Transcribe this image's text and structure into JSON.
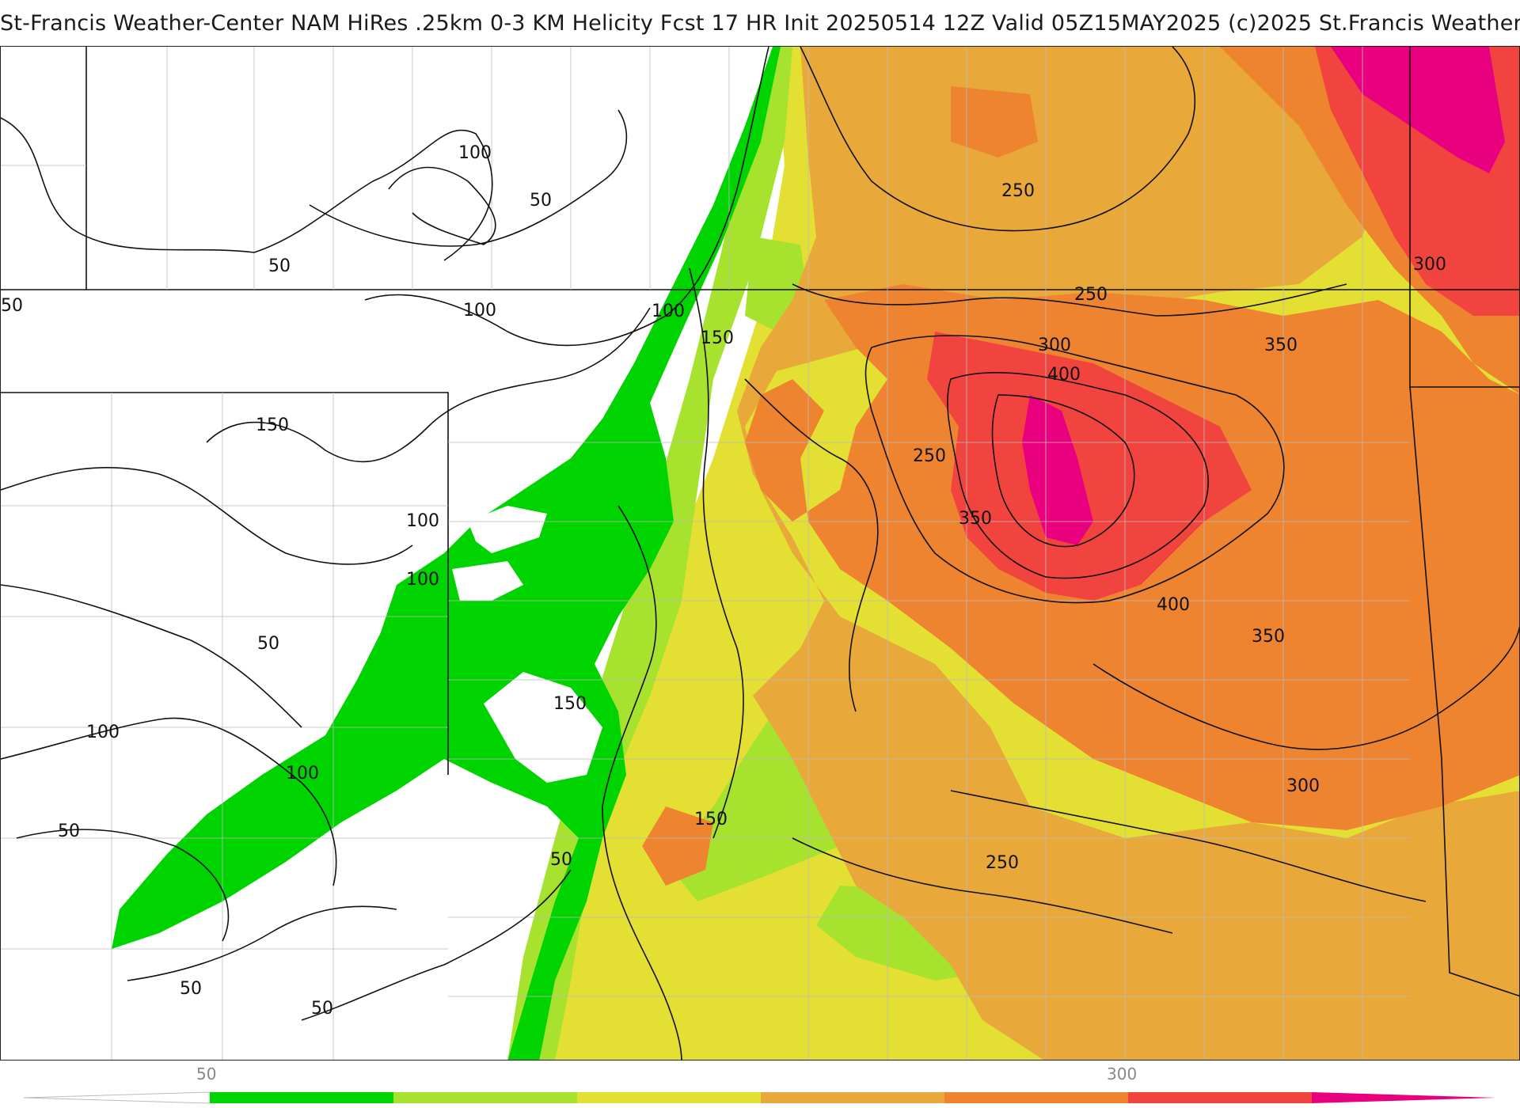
{
  "header": {
    "title": "St-Francis Weather-Center NAM HiRes .25km 0-3 KM Helicity Fcst 17 HR Init 20250514 12Z  Valid 05Z15MAY2025    (c)2025 St.Francis Weather"
  },
  "map": {
    "variable": "0-3 KM Helicity",
    "contour_labels": [
      {
        "text": "100",
        "id": "c100a"
      },
      {
        "text": "50",
        "id": "c50a"
      },
      {
        "text": "50",
        "id": "c50b"
      },
      {
        "text": "50",
        "id": "c50c"
      },
      {
        "text": "100",
        "id": "c100b"
      },
      {
        "text": "100",
        "id": "c100c"
      },
      {
        "text": "150",
        "id": "c150a"
      },
      {
        "text": "150",
        "id": "c150b"
      },
      {
        "text": "100",
        "id": "c100d"
      },
      {
        "text": "100",
        "id": "c100e"
      },
      {
        "text": "50",
        "id": "c50d"
      },
      {
        "text": "100",
        "id": "c100f"
      },
      {
        "text": "100",
        "id": "c100g"
      },
      {
        "text": "50",
        "id": "c50e"
      },
      {
        "text": "150",
        "id": "c150c"
      },
      {
        "text": "150",
        "id": "c150d"
      },
      {
        "text": "50",
        "id": "c50f"
      },
      {
        "text": "50",
        "id": "c50g"
      },
      {
        "text": "50",
        "id": "c50h"
      },
      {
        "text": "250",
        "id": "c250a"
      },
      {
        "text": "250",
        "id": "c250b"
      },
      {
        "text": "300",
        "id": "c300a"
      },
      {
        "text": "350",
        "id": "c350a"
      },
      {
        "text": "400",
        "id": "c400a"
      },
      {
        "text": "250",
        "id": "c250c"
      },
      {
        "text": "350",
        "id": "c350b"
      },
      {
        "text": "300",
        "id": "c300b"
      },
      {
        "text": "400",
        "id": "c400b"
      },
      {
        "text": "350",
        "id": "c350c"
      },
      {
        "text": "300",
        "id": "c300c"
      },
      {
        "text": "250",
        "id": "c250d"
      }
    ]
  },
  "colorbar": {
    "tick_labels": [
      "50",
      "300"
    ],
    "colors": [
      "#00d400",
      "#a6e22e",
      "#e4e033",
      "#e8a93a",
      "#ee8430",
      "#f2443f",
      "#e8007f"
    ]
  }
}
